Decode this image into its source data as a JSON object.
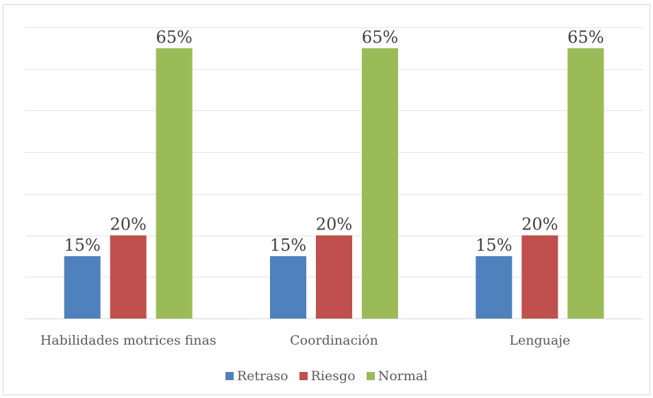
{
  "chart_data": {
    "type": "bar",
    "categories": [
      "Habilidades motrices finas",
      "Coordinación",
      "Lenguaje"
    ],
    "series": [
      {
        "name": "Retraso",
        "color": "#4f81bd",
        "values": [
          15,
          15,
          15
        ],
        "labels": [
          "15%",
          "15%",
          "15%"
        ]
      },
      {
        "name": "Riesgo",
        "color": "#c0504d",
        "values": [
          20,
          20,
          20
        ],
        "labels": [
          "20%",
          "20%",
          "20%"
        ]
      },
      {
        "name": "Normal",
        "color": "#9bbb59",
        "values": [
          65,
          65,
          65
        ],
        "labels": [
          "65%",
          "65%",
          "65%"
        ]
      }
    ],
    "ylim": [
      0,
      70
    ],
    "grid": true,
    "legend_position": "bottom"
  }
}
